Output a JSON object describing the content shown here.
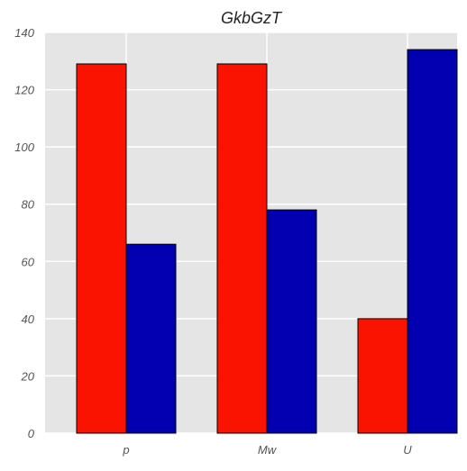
{
  "chart_data": {
    "type": "bar",
    "title": "GkbGzT",
    "xlabel": "",
    "ylabel": "",
    "categories": [
      "p",
      "Mw",
      "U"
    ],
    "series": [
      {
        "values": [
          129,
          129,
          40
        ],
        "color": "#fa1300"
      },
      {
        "values": [
          66,
          78,
          134
        ],
        "color": "#0000b0"
      }
    ],
    "ylim": [
      0,
      140
    ],
    "yticks": [
      0,
      20,
      40,
      60,
      80,
      100,
      120,
      140
    ],
    "grid": true,
    "plot_background": "#e5e5e5",
    "grid_color": "#ffffff"
  }
}
